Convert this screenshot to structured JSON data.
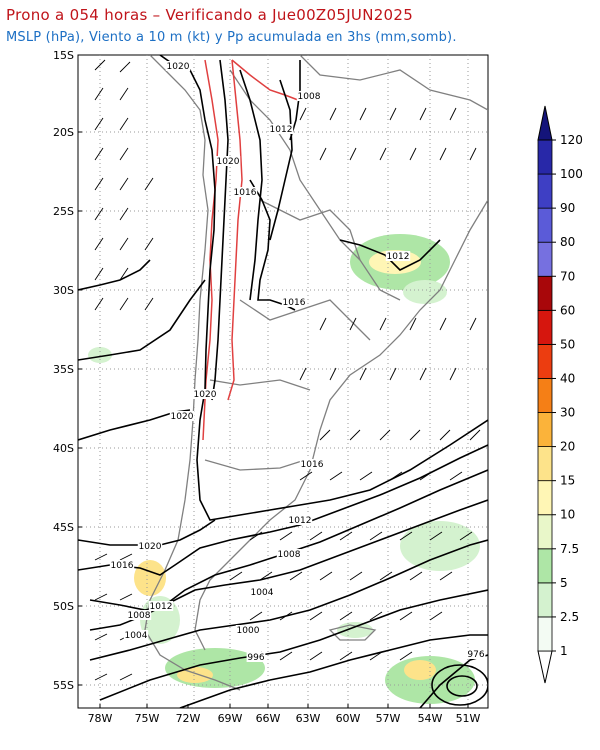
{
  "title": "Prono a 054 horas – Verificando a Jue00Z05JUN2025",
  "subtitle": "MSLP (hPa), Viento a 10 m (kt) y Pp acumulada en 3hs (mm,somb).",
  "map": {
    "lat_labels": [
      "15S",
      "20S",
      "25S",
      "30S",
      "35S",
      "40S",
      "45S",
      "50S",
      "55S"
    ],
    "lon_labels": [
      "78W",
      "75W",
      "72W",
      "69W",
      "66W",
      "63W",
      "60W",
      "57W",
      "54W",
      "51W"
    ],
    "isobar_labels": [
      {
        "text": "1020",
        "color": "black"
      },
      {
        "text": "1008",
        "color": "black"
      },
      {
        "text": "1012",
        "color": "black"
      },
      {
        "text": "1020",
        "color": "black"
      },
      {
        "text": "1016",
        "color": "black"
      },
      {
        "text": "1012",
        "color": "black"
      },
      {
        "text": "1016",
        "color": "black"
      },
      {
        "text": "1020",
        "color": "black"
      },
      {
        "text": "1020",
        "color": "black"
      },
      {
        "text": "1016",
        "color": "black"
      },
      {
        "text": "1012",
        "color": "black"
      },
      {
        "text": "1008",
        "color": "black"
      },
      {
        "text": "1020",
        "color": "black"
      },
      {
        "text": "1016",
        "color": "black"
      },
      {
        "text": "1004",
        "color": "black"
      },
      {
        "text": "1012",
        "color": "black"
      },
      {
        "text": "1008",
        "color": "black"
      },
      {
        "text": "1000",
        "color": "black"
      },
      {
        "text": "1004",
        "color": "black"
      },
      {
        "text": "996",
        "color": "black"
      },
      {
        "text": "976",
        "color": "black"
      }
    ]
  },
  "colorbar": {
    "levels": [
      "1",
      "2.5",
      "5",
      "7.5",
      "10",
      "15",
      "20",
      "30",
      "40",
      "50",
      "60",
      "70",
      "80",
      "90",
      "100",
      "120"
    ],
    "colors": [
      "#f3fbf3",
      "#d4f2cf",
      "#aee6a6",
      "#e9f7c9",
      "#fff6b5",
      "#fde38a",
      "#fbb33a",
      "#f57f16",
      "#ec3d10",
      "#d6160e",
      "#a8070a",
      "#7670e0",
      "#5b5bd8",
      "#3e3fc4",
      "#2828a8",
      "#14147a"
    ]
  }
}
